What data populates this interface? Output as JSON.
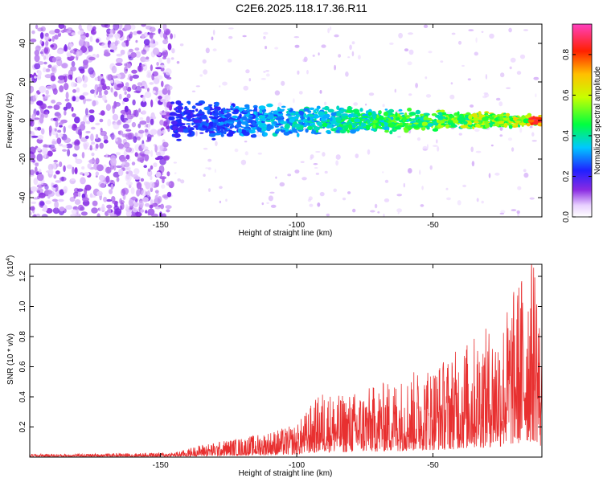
{
  "title": "C2E6.2025.118.17.36.R11",
  "chart_data": [
    {
      "type": "heatmap",
      "xlabel": "Height of straight line (km)",
      "ylabel": "Frequency (Hz)",
      "xlim": [
        -198,
        -10
      ],
      "ylim": [
        -50,
        50
      ],
      "xticks": [
        -150,
        -100,
        -50
      ],
      "yticks": [
        -40,
        -20,
        0,
        20,
        40
      ],
      "colorbar": {
        "label": "Normalized spectral amplitude",
        "range": [
          0,
          0.95
        ],
        "ticks": [
          0.0,
          0.2,
          0.4,
          0.6,
          0.8
        ]
      },
      "signal_band": {
        "x_start": -146,
        "x_end": -10,
        "center_freq": 0,
        "amplitude_trend": "increases toward -10 km"
      },
      "noise_region": {
        "x_start": -198,
        "x_end": -146
      }
    },
    {
      "type": "line",
      "xlabel": "Height of straight line (km)",
      "ylabel": "SNR (10 * v/v)",
      "multiplier": "(x10",
      "multiplier_exp": "4",
      "multiplier_close": ")",
      "xlim": [
        -198,
        -10
      ],
      "ylim": [
        0,
        1.28
      ],
      "xticks": [
        -150,
        -100,
        -50
      ],
      "yticks": [
        0.2,
        0.4,
        0.6,
        0.8,
        1.0,
        1.2
      ],
      "color": "#e83030",
      "series": [
        {
          "x": [
            -198,
            -180,
            -160,
            -145,
            -140,
            -135,
            -130,
            -125,
            -120,
            -115,
            -110,
            -105,
            -100,
            -95,
            -90,
            -85,
            -80,
            -75,
            -70,
            -65,
            -60,
            -55,
            -50,
            -45,
            -40,
            -35,
            -30,
            -25,
            -20,
            -15,
            -12,
            -10
          ],
          "y": [
            0.02,
            0.02,
            0.025,
            0.03,
            0.05,
            0.08,
            0.09,
            0.11,
            0.12,
            0.14,
            0.16,
            0.18,
            0.2,
            0.32,
            0.42,
            0.38,
            0.4,
            0.42,
            0.45,
            0.48,
            0.5,
            0.55,
            0.58,
            0.62,
            0.68,
            0.75,
            0.8,
            0.85,
            1.05,
            1.25,
            1.3,
            0.6
          ]
        }
      ]
    }
  ]
}
